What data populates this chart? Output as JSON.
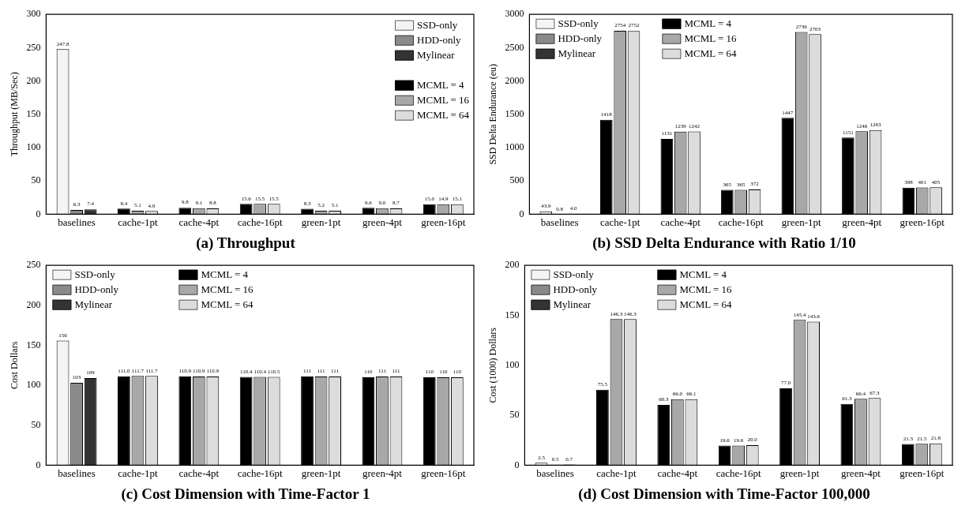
{
  "chart_data": [
    {
      "type": "bar",
      "title": "(a) Throughput",
      "ylabel": "Throughput (MB/Sec)",
      "categories": [
        "baselines",
        "cache-1pt",
        "cache-4pt",
        "cache-16pt",
        "green-1pt",
        "green-4pt",
        "green-16pt"
      ],
      "ylim": [
        0,
        300
      ],
      "yticks": [
        0,
        50,
        100,
        150,
        200,
        250,
        300
      ],
      "legend": "top right",
      "grid": false,
      "series": [
        {
          "name": "SSD-only",
          "color": "#f4f4f4",
          "values": [
            247.8,
            null,
            null,
            null,
            null,
            null,
            null
          ],
          "value_labels": [
            "247.8",
            null,
            null,
            null,
            null,
            null,
            null
          ]
        },
        {
          "name": "HDD-only",
          "color": "#8a8a8a",
          "values": [
            6.3,
            null,
            null,
            null,
            null,
            null,
            null
          ],
          "value_labels": [
            "6.3",
            null,
            null,
            null,
            null,
            null,
            null
          ]
        },
        {
          "name": "Mylinear",
          "color": "#333333",
          "values": [
            7.4,
            null,
            null,
            null,
            null,
            null,
            null
          ],
          "value_labels": [
            "7.4",
            null,
            null,
            null,
            null,
            null,
            null
          ]
        },
        {
          "name": "MCML = 4",
          "color": "#000000",
          "values": [
            null,
            8.4,
            9.8,
            15.6,
            8.3,
            9.6,
            15.0
          ],
          "value_labels": [
            null,
            "8.4",
            "9.8",
            "15.6",
            "8.3",
            "9.6",
            "15.0"
          ]
        },
        {
          "name": "MCML = 16",
          "color": "#a8a8a8",
          "values": [
            null,
            5.1,
            9.1,
            15.5,
            5.2,
            9.0,
            14.9
          ],
          "value_labels": [
            null,
            "5.1",
            "9.1",
            "15.5",
            "5.2",
            "9.0",
            "14.9"
          ]
        },
        {
          "name": "MCML = 64",
          "color": "#dcdcdc",
          "values": [
            null,
            4.9,
            8.8,
            15.5,
            5.1,
            8.7,
            15.1
          ],
          "value_labels": [
            null,
            "4.9",
            "8.8",
            "15.5",
            "5.1",
            "8.7",
            "15.1"
          ]
        }
      ]
    },
    {
      "type": "bar",
      "title": "(b) SSD Delta Endurance with Ratio 1/10",
      "ylabel": "SSD Delta Endurance (eu)",
      "categories": [
        "baselines",
        "cache-1pt",
        "cache-4pt",
        "cache-16pt",
        "green-1pt",
        "green-4pt",
        "green-16pt"
      ],
      "ylim": [
        0,
        3000
      ],
      "yticks": [
        0,
        500,
        1000,
        1500,
        2000,
        2500,
        3000
      ],
      "legend": "top left",
      "grid": false,
      "series": [
        {
          "name": "SSD-only",
          "color": "#f4f4f4",
          "values": [
            43.9,
            null,
            null,
            null,
            null,
            null,
            null
          ],
          "value_labels": [
            "43.9",
            null,
            null,
            null,
            null,
            null,
            null
          ]
        },
        {
          "name": "HDD-only",
          "color": "#8a8a8a",
          "values": [
            0.8,
            null,
            null,
            null,
            null,
            null,
            null
          ],
          "value_labels": [
            "0.8",
            null,
            null,
            null,
            null,
            null,
            null
          ]
        },
        {
          "name": "Mylinear",
          "color": "#333333",
          "values": [
            4.0,
            null,
            null,
            null,
            null,
            null,
            null
          ],
          "value_labels": [
            "4.0",
            null,
            null,
            null,
            null,
            null,
            null
          ]
        },
        {
          "name": "MCML = 4",
          "color": "#000000",
          "values": [
            null,
            1418,
            1131,
            365,
            1447,
            1151,
            398
          ],
          "value_labels": [
            null,
            "1418",
            "1131",
            "365",
            "1447",
            "1151",
            "398"
          ]
        },
        {
          "name": "MCML = 16",
          "color": "#a8a8a8",
          "values": [
            null,
            2754,
            1239,
            365,
            2736,
            1246,
            401
          ],
          "value_labels": [
            null,
            "2754",
            "1239",
            "365",
            "2736",
            "1246",
            "401"
          ]
        },
        {
          "name": "MCML = 64",
          "color": "#dcdcdc",
          "values": [
            null,
            2752,
            1242,
            372,
            2703,
            1263,
            405
          ],
          "value_labels": [
            null,
            "2752",
            "1242",
            "372",
            "2703",
            "1263",
            "405"
          ]
        }
      ]
    },
    {
      "type": "bar",
      "title": "(c) Cost Dimension with Time-Factor 1",
      "ylabel": "Cost Dollars",
      "categories": [
        "baselines",
        "cache-1pt",
        "cache-4pt",
        "cache-16pt",
        "green-1pt",
        "green-4pt",
        "green-16pt"
      ],
      "ylim": [
        0,
        250
      ],
      "yticks": [
        0,
        50,
        100,
        150,
        200,
        250
      ],
      "legend": "top left",
      "grid": false,
      "series": [
        {
          "name": "SSD-only",
          "color": "#f4f4f4",
          "values": [
            156,
            null,
            null,
            null,
            null,
            null,
            null
          ],
          "value_labels": [
            "156",
            null,
            null,
            null,
            null,
            null,
            null
          ]
        },
        {
          "name": "HDD-only",
          "color": "#8a8a8a",
          "values": [
            103,
            null,
            null,
            null,
            null,
            null,
            null
          ],
          "value_labels": [
            "103",
            null,
            null,
            null,
            null,
            null,
            null
          ]
        },
        {
          "name": "Mylinear",
          "color": "#333333",
          "values": [
            109,
            null,
            null,
            null,
            null,
            null,
            null
          ],
          "value_labels": [
            "109",
            null,
            null,
            null,
            null,
            null,
            null
          ]
        },
        {
          "name": "MCML = 4",
          "color": "#000000",
          "values": [
            null,
            111.0,
            110.9,
            110.4,
            111,
            110,
            110
          ],
          "value_labels": [
            null,
            "111.0",
            "110.9",
            "110.4",
            "111",
            "110",
            "110"
          ]
        },
        {
          "name": "MCML = 16",
          "color": "#a8a8a8",
          "values": [
            null,
            111.7,
            110.9,
            110.4,
            111,
            111,
            110
          ],
          "value_labels": [
            null,
            "111.7",
            "110.9",
            "110.4",
            "111",
            "111",
            "110"
          ]
        },
        {
          "name": "MCML = 64",
          "color": "#dcdcdc",
          "values": [
            null,
            111.7,
            110.9,
            110.5,
            111,
            111,
            110
          ],
          "value_labels": [
            null,
            "111.7",
            "110.9",
            "110.5",
            "111",
            "111",
            "110"
          ]
        }
      ]
    },
    {
      "type": "bar",
      "title": "(d) Cost Dimension with Time-Factor 100,000",
      "ylabel": "Cost (1000) Dollars",
      "categories": [
        "baselines",
        "cache-1pt",
        "cache-4pt",
        "cache-16pt",
        "green-1pt",
        "green-4pt",
        "green-16pt"
      ],
      "ylim": [
        0,
        200
      ],
      "yticks": [
        0,
        50,
        100,
        150,
        200
      ],
      "legend": "top left",
      "grid": false,
      "series": [
        {
          "name": "SSD-only",
          "color": "#f4f4f4",
          "values": [
            2.5,
            null,
            null,
            null,
            null,
            null,
            null
          ],
          "value_labels": [
            "2.5",
            null,
            null,
            null,
            null,
            null,
            null
          ]
        },
        {
          "name": "HDD-only",
          "color": "#8a8a8a",
          "values": [
            0.5,
            null,
            null,
            null,
            null,
            null,
            null
          ],
          "value_labels": [
            "0.5",
            null,
            null,
            null,
            null,
            null,
            null
          ]
        },
        {
          "name": "Mylinear",
          "color": "#333333",
          "values": [
            0.7,
            null,
            null,
            null,
            null,
            null,
            null
          ],
          "value_labels": [
            "0.7",
            null,
            null,
            null,
            null,
            null,
            null
          ]
        },
        {
          "name": "MCML = 4",
          "color": "#000000",
          "values": [
            null,
            75.5,
            60.3,
            19.6,
            77.0,
            61.3,
            21.3
          ],
          "value_labels": [
            null,
            "75.5",
            "60.3",
            "19.6",
            "77.0",
            "61.3",
            "21.3"
          ]
        },
        {
          "name": "MCML = 16",
          "color": "#a8a8a8",
          "values": [
            null,
            146.3,
            66.0,
            19.6,
            145.4,
            66.4,
            21.5
          ],
          "value_labels": [
            null,
            "146.3",
            "66.0",
            "19.6",
            "145.4",
            "66.4",
            "21.5"
          ]
        },
        {
          "name": "MCML = 64",
          "color": "#dcdcdc",
          "values": [
            null,
            146.3,
            66.1,
            20.0,
            143.6,
            67.3,
            21.8
          ],
          "value_labels": [
            null,
            "146.3",
            "66.1",
            "20.0",
            "143.6",
            "67.3",
            "21.8"
          ]
        }
      ]
    }
  ]
}
